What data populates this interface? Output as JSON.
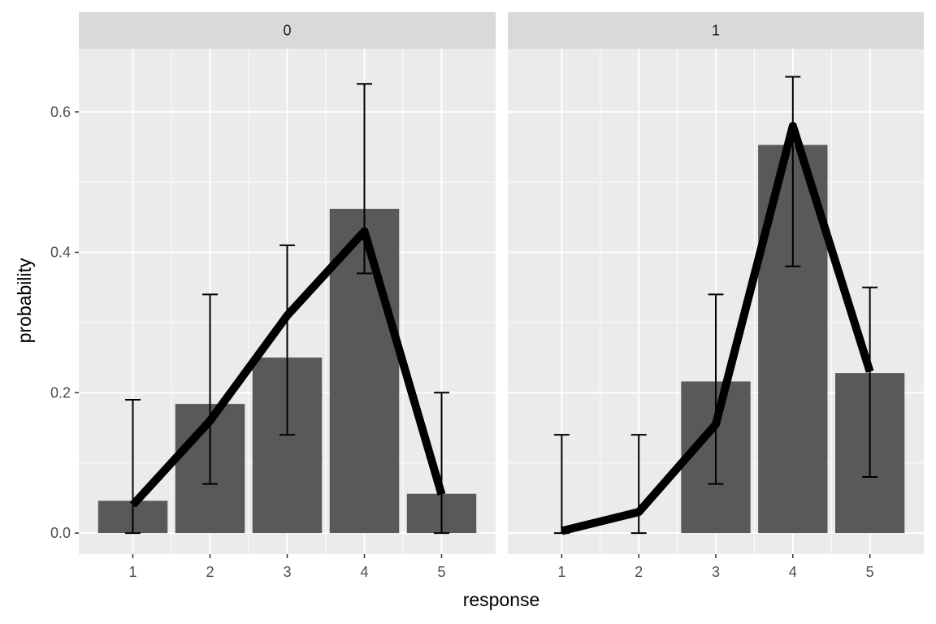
{
  "chart_data": {
    "type": "bar",
    "facets": [
      "0",
      "1"
    ],
    "categories": [
      "1",
      "2",
      "3",
      "4",
      "5"
    ],
    "xlabel": "response",
    "ylabel": "probability",
    "ylim": [
      -0.03,
      0.69
    ],
    "yticks": [
      0.0,
      0.2,
      0.4,
      0.6
    ],
    "ytick_labels": [
      "0.0",
      "0.2",
      "0.4",
      "0.6"
    ],
    "grid": true,
    "colors": {
      "panel_bg": "#ebebeb",
      "strip_bg": "#d9d9d9",
      "grid": "#ffffff",
      "bar": "#595959",
      "line": "#000000"
    },
    "panels": [
      {
        "facet": "0",
        "bars": [
          0.046,
          0.184,
          0.25,
          0.462,
          0.056
        ],
        "line": [
          0.04,
          0.16,
          0.31,
          0.43,
          0.055
        ],
        "error_low": [
          0.0,
          0.07,
          0.14,
          0.37,
          0.0
        ],
        "error_high": [
          0.19,
          0.34,
          0.41,
          0.64,
          0.2
        ]
      },
      {
        "facet": "1",
        "bars": [
          0.0,
          0.0,
          0.216,
          0.553,
          0.228
        ],
        "line": [
          0.003,
          0.03,
          0.155,
          0.58,
          0.23
        ],
        "error_low": [
          0.0,
          0.0,
          0.07,
          0.38,
          0.08
        ],
        "error_high": [
          0.14,
          0.14,
          0.34,
          0.65,
          0.35
        ]
      }
    ]
  }
}
